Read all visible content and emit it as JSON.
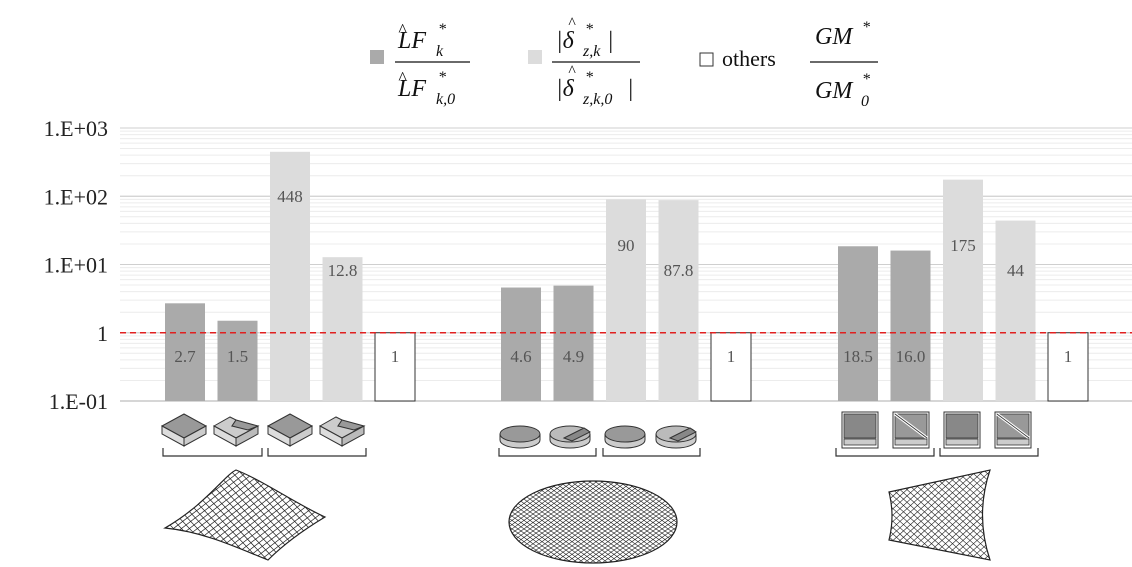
{
  "chart_data": {
    "type": "bar",
    "yscale": "log",
    "ylim": [
      0.1,
      1000
    ],
    "yticks": [
      {
        "value": 0.1,
        "label": "1.E-01"
      },
      {
        "value": 1,
        "label": "1"
      },
      {
        "value": 10,
        "label": "1.E+01"
      },
      {
        "value": 100,
        "label": "1.E+02"
      },
      {
        "value": 1000,
        "label": "1.E+03"
      }
    ],
    "reference_line": {
      "value": 1,
      "color": "#e02020",
      "style": "dashed"
    },
    "legend": {
      "placement": "top",
      "entries": [
        {
          "text": "",
          "color": "#aaaaaa",
          "formula": "LF_k / LF_k,0"
        },
        {
          "text": "",
          "color": "#dcdcdc",
          "formula": "|δ_z,k| / |δ_z,k,0|"
        },
        {
          "text": "others",
          "color": "#ffffff",
          "formula": "GM / GM_0"
        }
      ]
    },
    "groups": [
      {
        "surface": "hyperbolic-paraboloid",
        "element_icon": "square-plate",
        "bars": [
          {
            "value": 2.7,
            "label": "2.7",
            "series": 0
          },
          {
            "value": 1.5,
            "label": "1.5",
            "series": 0
          },
          {
            "value": 448,
            "label": "448",
            "series": 1
          },
          {
            "value": 12.8,
            "label": "12.8",
            "series": 1
          },
          {
            "value": 1,
            "label": "1",
            "series": 2
          }
        ]
      },
      {
        "surface": "spherical-dome",
        "element_icon": "circular-plate",
        "bars": [
          {
            "value": 4.6,
            "label": "4.6",
            "series": 0
          },
          {
            "value": 4.9,
            "label": "4.9",
            "series": 0
          },
          {
            "value": 90,
            "label": "90",
            "series": 1
          },
          {
            "value": 87.8,
            "label": "87.8",
            "series": 1
          },
          {
            "value": 1,
            "label": "1",
            "series": 2
          }
        ]
      },
      {
        "surface": "hyperboloid-tower",
        "element_icon": "square-panel",
        "bars": [
          {
            "value": 18.5,
            "label": "18.5",
            "series": 0
          },
          {
            "value": 16.0,
            "label": "16.0",
            "series": 0
          },
          {
            "value": 175,
            "label": "175",
            "series": 1
          },
          {
            "value": 44,
            "label": "44",
            "series": 1
          },
          {
            "value": 1,
            "label": "1",
            "series": 2
          }
        ]
      }
    ]
  }
}
